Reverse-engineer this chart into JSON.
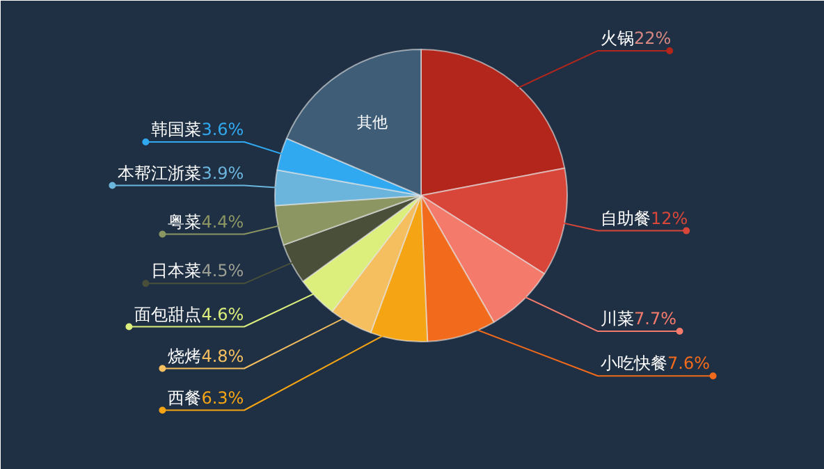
{
  "chart_data": {
    "type": "pie",
    "categories": [
      "火锅",
      "自助餐",
      "川菜",
      "小吃快餐",
      "西餐",
      "烧烤",
      "面包甜点",
      "日本菜",
      "粤菜",
      "本帮江浙菜",
      "韩国菜",
      "其他"
    ],
    "values": [
      22,
      12,
      7.7,
      7.6,
      6.3,
      4.8,
      4.6,
      4.5,
      4.4,
      3.9,
      3.6,
      18.6
    ],
    "value_labels": [
      "22%",
      "12%",
      "7.7%",
      "7.6%",
      "6.3%",
      "4.8%",
      "4.6%",
      "4.5%",
      "4.4%",
      "3.9%",
      "3.6%",
      null
    ],
    "colors": [
      "#b3261c",
      "#d8463a",
      "#f47a6b",
      "#f26a1b",
      "#f5a414",
      "#f5bf60",
      "#dcee7c",
      "#4a4f3a",
      "#8b9663",
      "#6bb5dd",
      "#30a9f0",
      "#3f5d77"
    ]
  }
}
